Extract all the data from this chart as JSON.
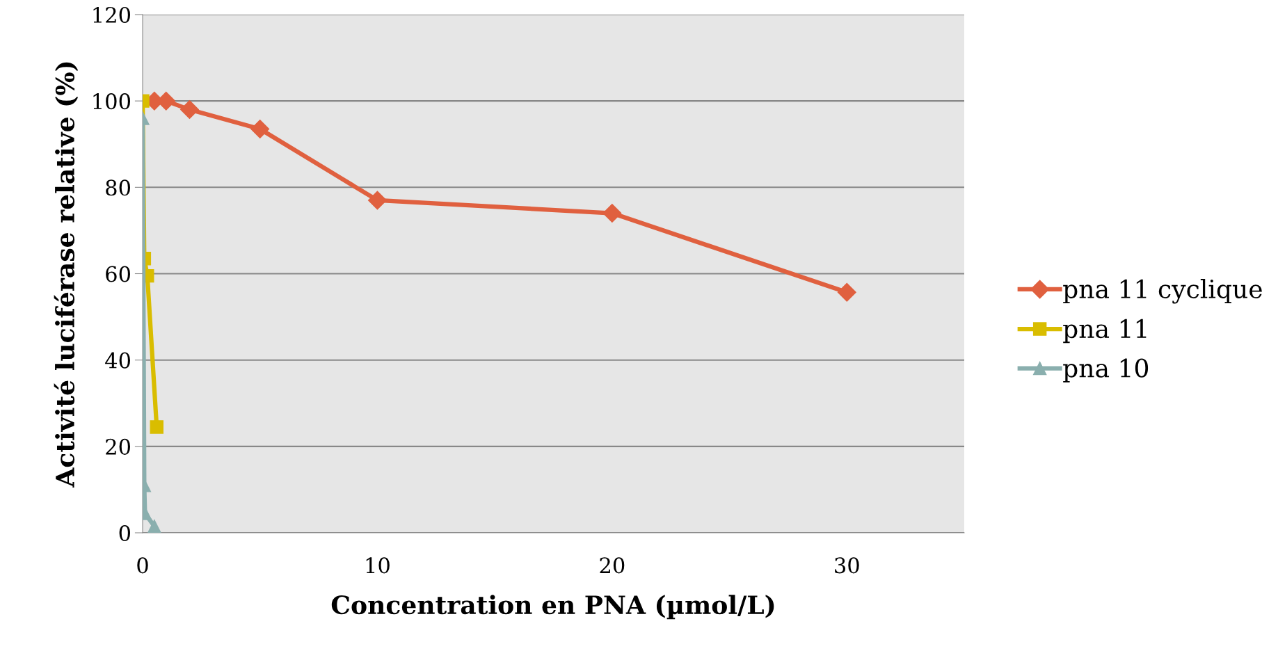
{
  "chart_data": {
    "type": "line",
    "xlabel": "Concentration en PNA (µmol/L)",
    "ylabel": "Activité luciférase relative (%)",
    "xlim": [
      0,
      35
    ],
    "xticks": [
      0,
      10,
      20,
      30
    ],
    "ylim": [
      0,
      120
    ],
    "yticks": [
      0,
      20,
      40,
      60,
      80,
      100,
      120
    ],
    "grid": "y",
    "legend": "right",
    "series": [
      {
        "name": "pna 11 cyclique",
        "color": "#e0603f",
        "marker": "diamond",
        "x": [
          0.5,
          1,
          2,
          5,
          10,
          20,
          30
        ],
        "values": [
          100,
          100,
          98,
          93.5,
          77,
          74,
          55.7
        ]
      },
      {
        "name": "pna 11",
        "color": "#d9bd00",
        "marker": "square",
        "x": [
          0,
          0.07,
          0.2,
          0.6
        ],
        "values": [
          100,
          63.5,
          59.5,
          24.5
        ]
      },
      {
        "name": "pna 10",
        "color": "#8aafae",
        "marker": "triangle",
        "x": [
          0,
          0.07,
          0.1,
          0.5
        ],
        "values": [
          96,
          11,
          4.5,
          1.5
        ]
      }
    ]
  }
}
